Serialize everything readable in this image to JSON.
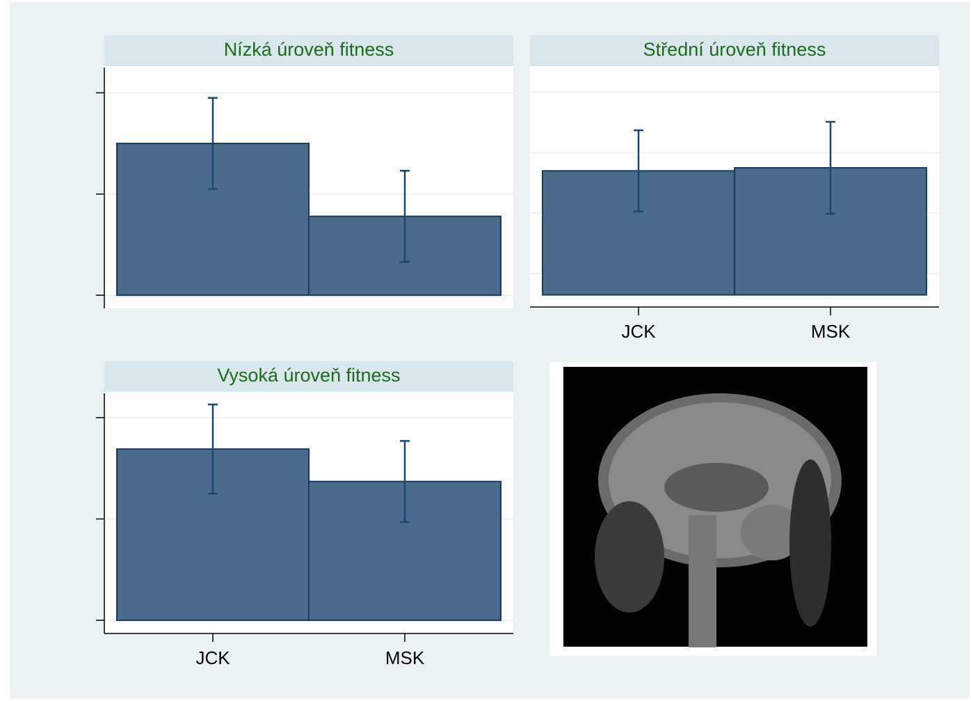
{
  "chart_data": [
    {
      "type": "bar",
      "title": "Nízká úroveň fitness",
      "categories": [
        null,
        null
      ],
      "values": [
        1.5,
        0.78
      ],
      "errors": [
        0.45,
        0.45
      ],
      "color": "#4a6b8c",
      "ylim": [
        -0.13,
        2.25
      ],
      "yticks": [
        0,
        1,
        2
      ],
      "grid": true
    },
    {
      "type": "bar",
      "title": "Střední úroveň fitness",
      "categories": [
        "JCK",
        "MSK"
      ],
      "values": [
        2.05,
        2.1
      ],
      "errors": [
        0.67,
        0.76
      ],
      "color": "#4a6b8c",
      "ylim": [
        -0.2,
        3.78
      ],
      "yticks": [
        0.35,
        1.35,
        2.35,
        3.35
      ],
      "grid": true
    },
    {
      "type": "bar",
      "title": "Vysoká úroveň fitness",
      "categories": [
        "JCK",
        "MSK"
      ],
      "values": [
        1.69,
        1.37
      ],
      "errors": [
        0.44,
        0.4
      ],
      "color": "#4a6b8c",
      "ylim": [
        -0.13,
        2.24
      ],
      "yticks": [
        0,
        1,
        2
      ],
      "grid": true
    }
  ]
}
